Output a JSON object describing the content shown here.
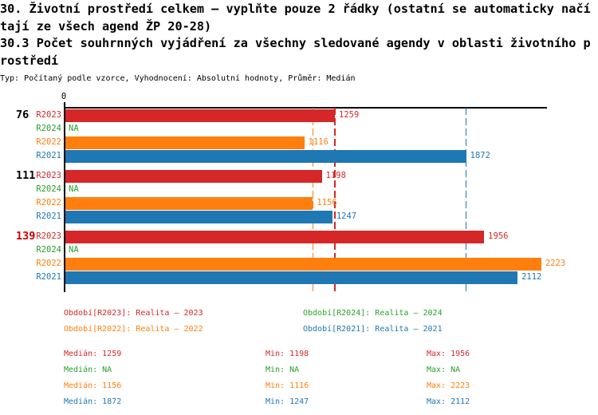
{
  "header": {
    "title_line1": "30. Životní prostředí celkem – vyplňte pouze 2 řádky (ostatní se automaticky načítají ze všech agend ŽP 20-28)",
    "title_line2": "30.3 Počet souhrnných vyjádření za všechny sledované agendy v oblasti životního prostředí",
    "meta": "Typ: Počítaný podle vzorce, Vyhodnocení: Absolutní hodnoty, Průměr: Medián"
  },
  "colors": {
    "red": "#d62728",
    "green": "#2ca02c",
    "orange": "#ff7f0e",
    "blue": "#1f77b4",
    "highlight_group": "#cc0000",
    "axis": "#000000"
  },
  "chart_data": {
    "type": "bar",
    "orientation": "horizontal",
    "xlim": [
      0,
      2250
    ],
    "origin_tick_label": "0",
    "na_label": "NA",
    "grid": false,
    "groups": [
      "76",
      "111",
      "139"
    ],
    "group_label_colors": [
      "#000000",
      "#000000",
      "#cc0000"
    ],
    "row_order": [
      "R2023",
      "R2024",
      "R2022",
      "R2021"
    ],
    "series": [
      {
        "id": "R2023",
        "label": "R2023",
        "color": "#d62728",
        "values": [
          1259,
          1198,
          1956
        ],
        "median": 1259,
        "min": 1198,
        "max": 1956
      },
      {
        "id": "R2024",
        "label": "R2024",
        "color": "#2ca02c",
        "values": [
          null,
          null,
          null
        ],
        "median": null,
        "min": null,
        "max": null
      },
      {
        "id": "R2022",
        "label": "R2022",
        "color": "#ff7f0e",
        "values": [
          1116,
          1156,
          2223
        ],
        "median": 1156,
        "min": 1116,
        "max": 2223
      },
      {
        "id": "R2021",
        "label": "R2021",
        "color": "#1f77b4",
        "values": [
          1872,
          1247,
          2112
        ],
        "median": 1872,
        "min": 1247,
        "max": 2112
      }
    ],
    "median_lines": [
      {
        "series": "R2023",
        "value": 1259,
        "color": "#d62728"
      },
      {
        "series": "R2022",
        "value": 1156,
        "color": "#ff7f0e"
      },
      {
        "series": "R2021",
        "value": 1872,
        "color": "#1f77b4"
      }
    ]
  },
  "legend": {
    "items": [
      {
        "text": "Období[R2023]: Realita – 2023",
        "color": "#d62728",
        "col": 0,
        "row": 0
      },
      {
        "text": "Období[R2024]: Realita – 2024",
        "color": "#2ca02c",
        "col": 1,
        "row": 0
      },
      {
        "text": "Období[R2022]: Realita – 2022",
        "color": "#ff7f0e",
        "col": 0,
        "row": 1
      },
      {
        "text": "Období[R2021]: Realita – 2021",
        "color": "#1f77b4",
        "col": 1,
        "row": 1
      }
    ]
  },
  "stats": {
    "labels": {
      "median": "Medián",
      "min": "Min",
      "max": "Max"
    },
    "rows": [
      {
        "color": "#d62728",
        "median": "1259",
        "min": "1198",
        "max": "1956"
      },
      {
        "color": "#2ca02c",
        "median": "NA",
        "min": "NA",
        "max": "NA"
      },
      {
        "color": "#ff7f0e",
        "median": "1156",
        "min": "1116",
        "max": "2223"
      },
      {
        "color": "#1f77b4",
        "median": "1872",
        "min": "1247",
        "max": "2112"
      }
    ]
  }
}
